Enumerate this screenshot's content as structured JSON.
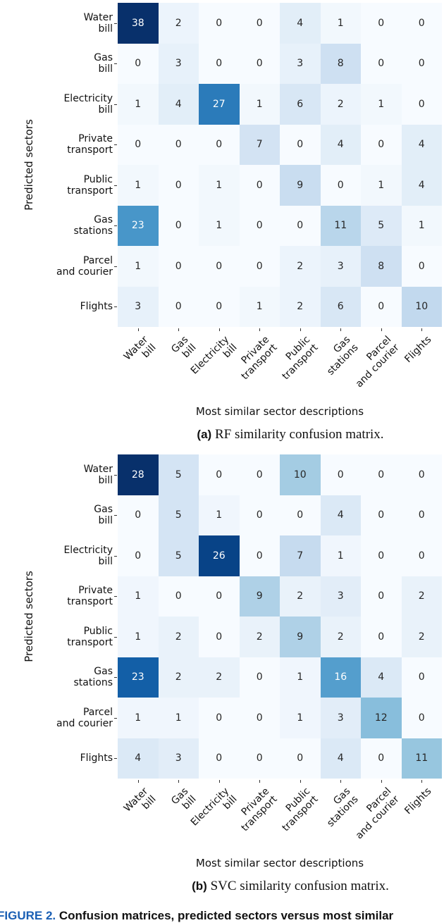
{
  "chart_data": [
    {
      "type": "heatmap",
      "colormap": "Blues",
      "xlabel": "Most similar sector descriptions",
      "ylabel": "Predicted sectors",
      "caption_label": "(a)",
      "caption": "RF similarity confusion matrix.",
      "row_labels": [
        "Water\nbill",
        "Gas\nbill",
        "Electricity\nbill",
        "Private\ntransport",
        "Public\ntransport",
        "Gas\nstations",
        "Parcel\nand courier",
        "Flights"
      ],
      "col_labels": [
        "Water\nbill",
        "Gas\nbill",
        "Electricity\nbill",
        "Private\ntransport",
        "Public\ntransport",
        "Gas\nstations",
        "Parcel\nand courier",
        "Flights"
      ],
      "values": [
        [
          38,
          2,
          0,
          0,
          4,
          1,
          0,
          0
        ],
        [
          0,
          3,
          0,
          0,
          3,
          8,
          0,
          0
        ],
        [
          1,
          4,
          27,
          1,
          6,
          2,
          1,
          0
        ],
        [
          0,
          0,
          0,
          7,
          0,
          4,
          0,
          4
        ],
        [
          1,
          0,
          1,
          0,
          9,
          0,
          1,
          4
        ],
        [
          23,
          0,
          1,
          0,
          0,
          11,
          5,
          1
        ],
        [
          1,
          0,
          0,
          0,
          2,
          3,
          8,
          0
        ],
        [
          3,
          0,
          0,
          1,
          2,
          6,
          0,
          10
        ]
      ]
    },
    {
      "type": "heatmap",
      "colormap": "Blues",
      "xlabel": "Most similar sector descriptions",
      "ylabel": "Predicted sectors",
      "caption_label": "(b)",
      "caption": "SVC similarity confusion matrix.",
      "row_labels": [
        "Water\nbill",
        "Gas\nbill",
        "Electricity\nbill",
        "Private\ntransport",
        "Public\ntransport",
        "Gas\nstations",
        "Parcel\nand courier",
        "Flights"
      ],
      "col_labels": [
        "Water\nbill",
        "Gas\nbill",
        "Electricity\nbill",
        "Private\ntransport",
        "Public\ntransport",
        "Gas\nstations",
        "Parcel\nand courier",
        "Flights"
      ],
      "values": [
        [
          28,
          5,
          0,
          0,
          10,
          0,
          0,
          0
        ],
        [
          0,
          5,
          1,
          0,
          0,
          4,
          0,
          0
        ],
        [
          0,
          5,
          26,
          0,
          7,
          1,
          0,
          0
        ],
        [
          1,
          0,
          0,
          9,
          2,
          3,
          0,
          2
        ],
        [
          1,
          2,
          0,
          2,
          9,
          2,
          0,
          2
        ],
        [
          23,
          2,
          2,
          0,
          1,
          16,
          4,
          0
        ],
        [
          1,
          1,
          0,
          0,
          1,
          3,
          12,
          0
        ],
        [
          4,
          3,
          0,
          0,
          0,
          4,
          0,
          11
        ]
      ]
    }
  ],
  "figure_caption": {
    "label": "FIGURE 2.",
    "text": "Confusion matrices, predicted sectors versus most similar"
  }
}
